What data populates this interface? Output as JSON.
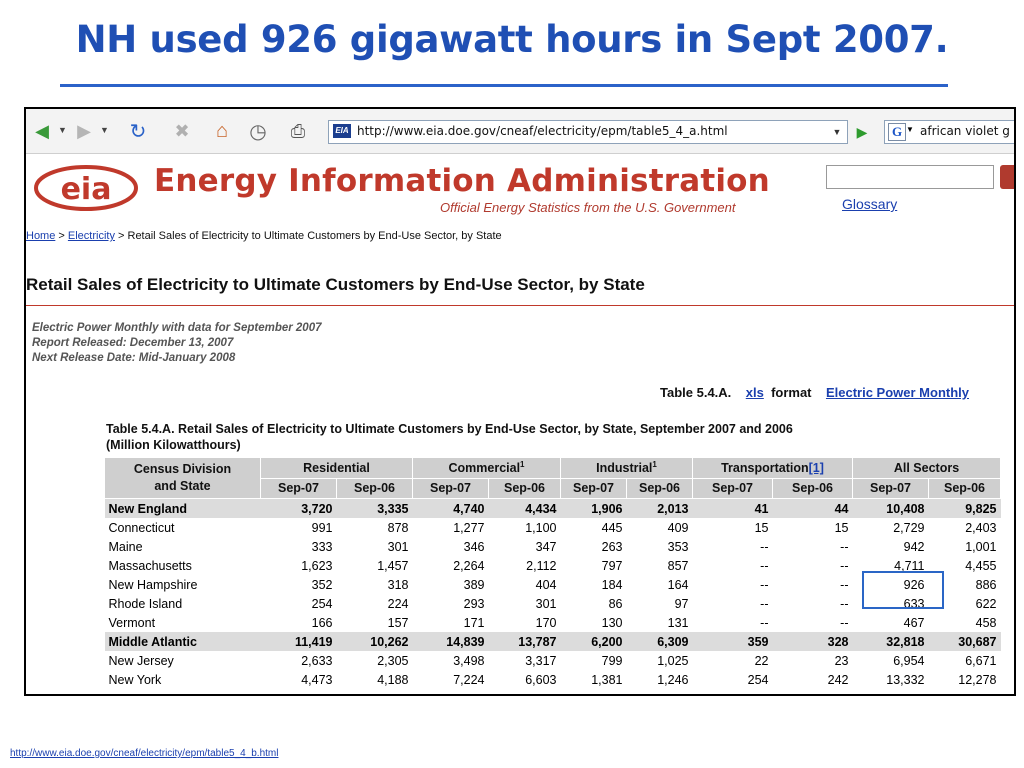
{
  "slide": {
    "title": "NH used 926 gigawatt hours in Sept 2007.",
    "source_link": "http://www.eia.doe.gov/cneaf/electricity/epm/table5_4_b.html"
  },
  "browser": {
    "url": "http://www.eia.doe.gov/cneaf/electricity/epm/table5_4_a.html",
    "favicon_text": "EIA",
    "search_engine_letter": "G",
    "search_value": "african violet g",
    "icons": [
      "back-arrow-icon",
      "forward-arrow-icon",
      "refresh-icon",
      "stop-icon",
      "home-icon",
      "history-icon",
      "print-icon",
      "go-icon"
    ]
  },
  "site": {
    "logo_text": "eia",
    "name": "Energy Information Administration",
    "tagline": "Official Energy Statistics from the U.S. Government",
    "glossary": "Glossary",
    "search_placeholder": ""
  },
  "breadcrumb": {
    "home": "Home",
    "sep1": " > ",
    "electricity": "Electricity",
    "sep2": " > ",
    "current": "Retail Sales of Electricity to Ultimate Customers by End-Use Sector, by State"
  },
  "page": {
    "title": "Retail Sales of Electricity to Ultimate Customers by End-Use Sector, by State",
    "meta1": "Electric Power Monthly with data for September 2007",
    "meta2": "Report Released: December 13, 2007",
    "meta3": "Next Release Date: Mid-January 2008",
    "table_ref_label": "Table 5.4.A.",
    "xls": "xls",
    "format": "format",
    "epm_link": "Electric Power Monthly",
    "caption1": "Table 5.4.A. Retail Sales of Electricity to Ultimate Customers by End-Use Sector, by State, September 2007 and 2006",
    "caption2": "(Million Kilowatthours)"
  },
  "table": {
    "division_header_1": "Census Division",
    "division_header_2": "and State",
    "sectors": {
      "residential": "Residential",
      "commercial": "Commercial",
      "commercial_note": "1",
      "industrial": "Industrial",
      "industrial_note": "1",
      "transportation": "Transportation",
      "transportation_note": "[1]",
      "all": "All Sectors"
    },
    "period_a": "Sep-07",
    "period_b": "Sep-06",
    "rows": [
      {
        "name": "New England",
        "region": true,
        "v": [
          "3,720",
          "3,335",
          "4,740",
          "4,434",
          "1,906",
          "2,013",
          "41",
          "44",
          "10,408",
          "9,825"
        ]
      },
      {
        "name": "Connecticut",
        "v": [
          "991",
          "878",
          "1,277",
          "1,100",
          "445",
          "409",
          "15",
          "15",
          "2,729",
          "2,403"
        ]
      },
      {
        "name": "Maine",
        "v": [
          "333",
          "301",
          "346",
          "347",
          "263",
          "353",
          "--",
          "--",
          "942",
          "1,001"
        ]
      },
      {
        "name": "Massachusetts",
        "v": [
          "1,623",
          "1,457",
          "2,264",
          "2,112",
          "797",
          "857",
          "--",
          "--",
          "4,711",
          "4,455"
        ]
      },
      {
        "name": "New Hampshire",
        "v": [
          "352",
          "318",
          "389",
          "404",
          "184",
          "164",
          "--",
          "--",
          "926",
          "886"
        ]
      },
      {
        "name": "Rhode Island",
        "v": [
          "254",
          "224",
          "293",
          "301",
          "86",
          "97",
          "--",
          "--",
          "633",
          "622"
        ]
      },
      {
        "name": "Vermont",
        "v": [
          "166",
          "157",
          "171",
          "170",
          "130",
          "131",
          "--",
          "--",
          "467",
          "458"
        ]
      },
      {
        "name": "Middle Atlantic",
        "region": true,
        "v": [
          "11,419",
          "10,262",
          "14,839",
          "13,787",
          "6,200",
          "6,309",
          "359",
          "328",
          "32,818",
          "30,687"
        ]
      },
      {
        "name": "New Jersey",
        "v": [
          "2,633",
          "2,305",
          "3,498",
          "3,317",
          "799",
          "1,025",
          "22",
          "23",
          "6,954",
          "6,671"
        ]
      },
      {
        "name": "New York",
        "v": [
          "4,473",
          "4,188",
          "7,224",
          "6,603",
          "1,381",
          "1,246",
          "254",
          "242",
          "13,332",
          "12,278"
        ]
      }
    ]
  },
  "colors": {
    "slide_title": "#1f4fb4",
    "eia_red": "#c0392b",
    "link_blue": "#1a3fae",
    "highlight_box": "#2a66c6",
    "header_gray": "#cfcfcf"
  }
}
